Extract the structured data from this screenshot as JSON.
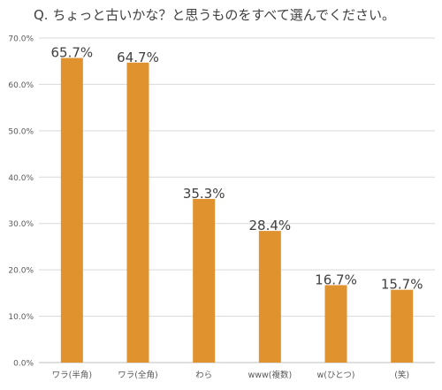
{
  "chart_data": {
    "type": "bar",
    "title": "Q. ちょっと古いかな？と思うものをすべて選んでください。",
    "categories": [
      "ワラ(半角)",
      "ワラ(全角)",
      "わら",
      "www(複数)",
      "w(ひとつ)",
      "(笑)"
    ],
    "values": [
      65.7,
      64.7,
      35.3,
      28.4,
      16.7,
      15.7
    ],
    "data_labels": [
      "65.7%",
      "64.7%",
      "35.3%",
      "28.4%",
      "16.7%",
      "15.7%"
    ],
    "y_ticks": [
      0,
      10,
      20,
      30,
      40,
      50,
      60,
      70
    ],
    "y_tick_labels": [
      "0.0%",
      "10.0%",
      "20.0%",
      "30.0%",
      "40.0%",
      "50.0%",
      "60.0%",
      "70.0%"
    ],
    "ylim": [
      0,
      70
    ],
    "xlabel": "",
    "ylabel": "",
    "grid": true,
    "legend": "none",
    "bar_color": "#E0922E",
    "grid_color": "#D9D9D9"
  }
}
